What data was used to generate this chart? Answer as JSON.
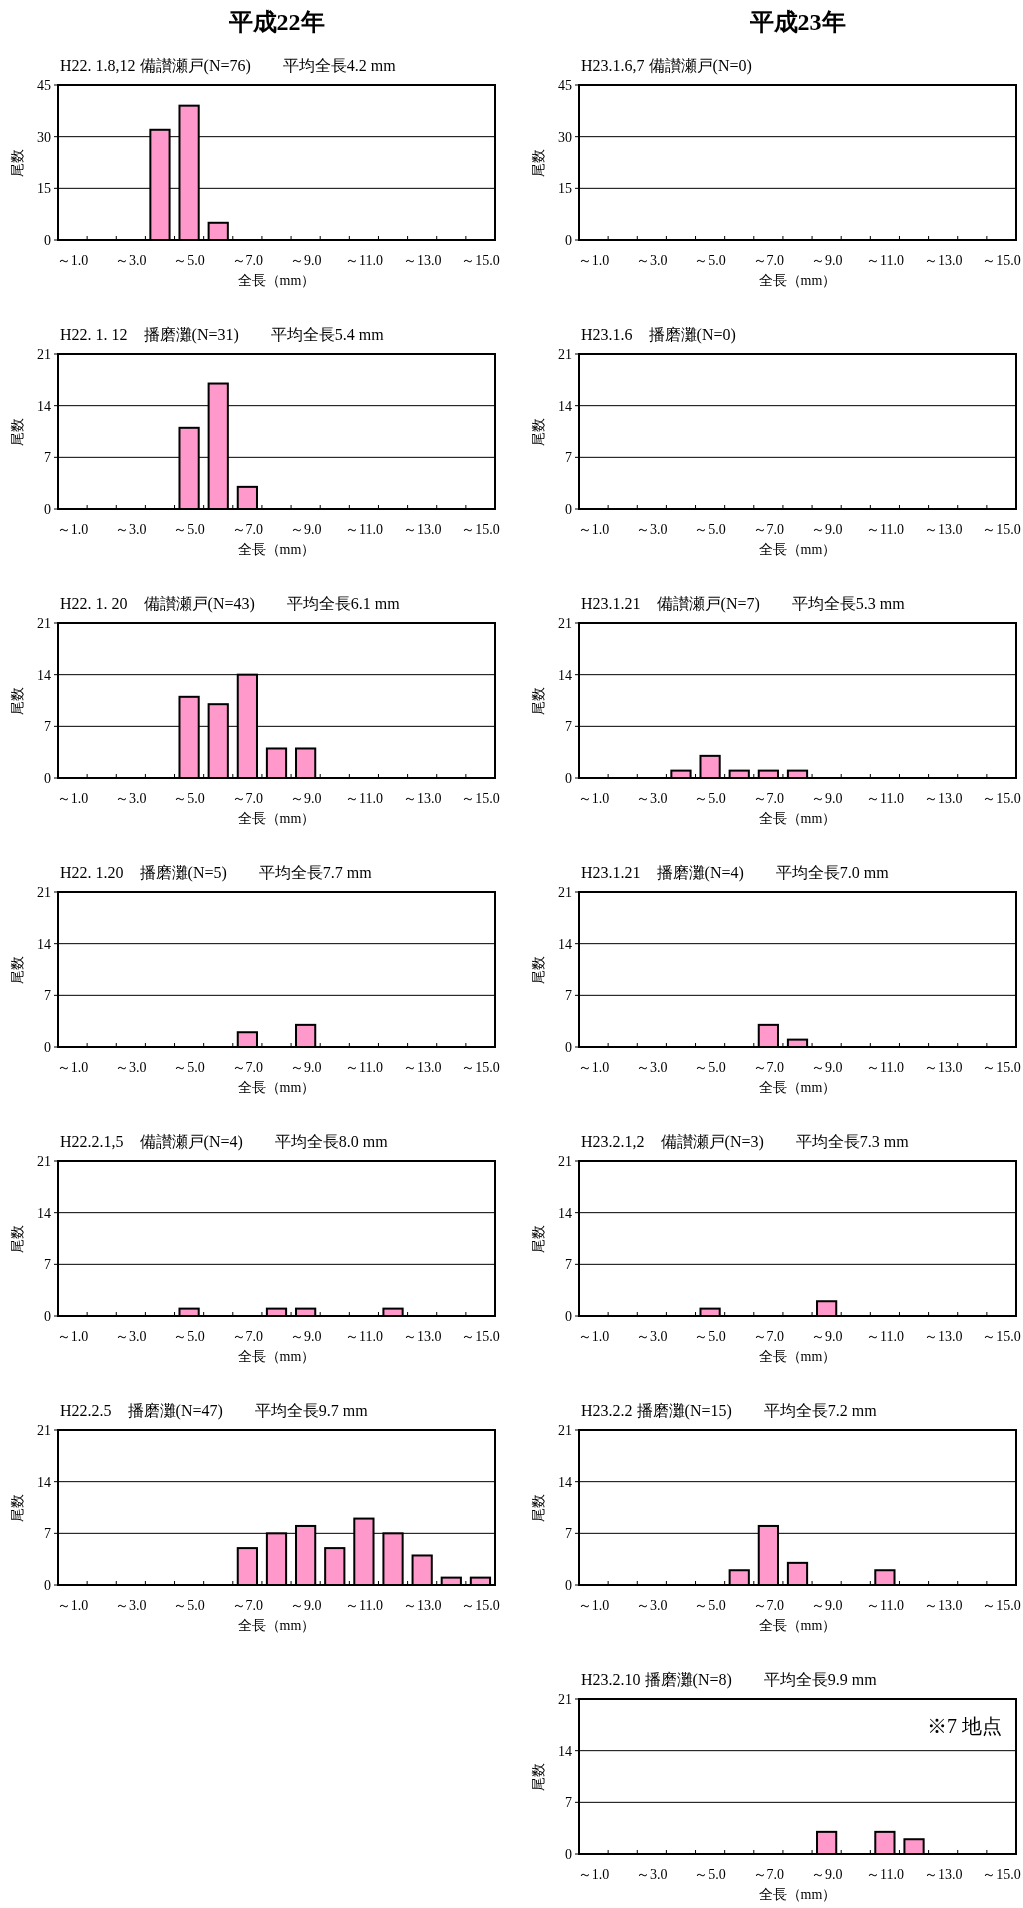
{
  "chart_data": [
    {
      "type": "bar",
      "title": "H22. 1.8,12 備讃瀬戸(N=76)　　平均全長4.2 mm",
      "xlabel": "全長（mm）",
      "ylabel": "尾数",
      "annotations": [
        "平成22年"
      ],
      "categories": [
        "～1.0",
        null,
        "～3.0",
        null,
        "～5.0",
        null,
        "～7.0",
        null,
        "～9.0",
        null,
        "～11.0",
        null,
        "～13.0",
        null,
        "～15.0"
      ],
      "values": [
        0,
        0,
        0,
        32,
        39,
        5,
        0,
        0,
        0,
        0,
        0,
        0,
        0,
        0,
        0
      ],
      "color": "#ff99cc",
      "ylim": [
        0,
        45
      ],
      "yticks": [
        0,
        15,
        30,
        45
      ],
      "grid": "y"
    },
    {
      "type": "bar",
      "title": "H23.1.6,7 備讃瀬戸(N=0)",
      "xlabel": "全長（mm）",
      "ylabel": "尾数",
      "annotations": [
        "平成23年"
      ],
      "categories": [
        "～1.0",
        null,
        "～3.0",
        null,
        "～5.0",
        null,
        "～7.0",
        null,
        "～9.0",
        null,
        "～11.0",
        null,
        "～13.0",
        null,
        "～15.0"
      ],
      "values": [
        0,
        0,
        0,
        0,
        0,
        0,
        0,
        0,
        0,
        0,
        0,
        0,
        0,
        0,
        0
      ],
      "color": "#ff99cc",
      "ylim": [
        0,
        45
      ],
      "yticks": [
        0,
        15,
        30,
        45
      ],
      "grid": "y"
    },
    {
      "type": "bar",
      "title": "H22. 1. 12　播磨灘(N=31)　　平均全長5.4 mm",
      "xlabel": "全長（mm）",
      "ylabel": "尾数",
      "categories": [
        "～1.0",
        null,
        "～3.0",
        null,
        "～5.0",
        null,
        "～7.0",
        null,
        "～9.0",
        null,
        "～11.0",
        null,
        "～13.0",
        null,
        "～15.0"
      ],
      "values": [
        0,
        0,
        0,
        0,
        11,
        17,
        3,
        0,
        0,
        0,
        0,
        0,
        0,
        0,
        0
      ],
      "color": "#ff99cc",
      "ylim": [
        0,
        21
      ],
      "yticks": [
        0,
        7,
        14,
        21
      ],
      "grid": "y"
    },
    {
      "type": "bar",
      "title": "H23.1.6　播磨灘(N=0)",
      "xlabel": "全長（mm）",
      "ylabel": "尾数",
      "categories": [
        "～1.0",
        null,
        "～3.0",
        null,
        "～5.0",
        null,
        "～7.0",
        null,
        "～9.0",
        null,
        "～11.0",
        null,
        "～13.0",
        null,
        "～15.0"
      ],
      "values": [
        0,
        0,
        0,
        0,
        0,
        0,
        0,
        0,
        0,
        0,
        0,
        0,
        0,
        0,
        0
      ],
      "color": "#ff99cc",
      "ylim": [
        0,
        21
      ],
      "yticks": [
        0,
        7,
        14,
        21
      ],
      "grid": "y"
    },
    {
      "type": "bar",
      "title": "H22. 1. 20　備讃瀬戸(N=43)　　平均全長6.1 mm",
      "xlabel": "全長（mm）",
      "ylabel": "尾数",
      "categories": [
        "～1.0",
        null,
        "～3.0",
        null,
        "～5.0",
        null,
        "～7.0",
        null,
        "～9.0",
        null,
        "～11.0",
        null,
        "～13.0",
        null,
        "～15.0"
      ],
      "values": [
        0,
        0,
        0,
        0,
        11,
        10,
        14,
        4,
        4,
        0,
        0,
        0,
        0,
        0,
        0
      ],
      "color": "#ff99cc",
      "ylim": [
        0,
        21
      ],
      "yticks": [
        0,
        7,
        14,
        21
      ],
      "grid": "y"
    },
    {
      "type": "bar",
      "title": "H23.1.21　備讃瀬戸(N=7)　　平均全長5.3 mm",
      "xlabel": "全長（mm）",
      "ylabel": "尾数",
      "categories": [
        "～1.0",
        null,
        "～3.0",
        null,
        "～5.0",
        null,
        "～7.0",
        null,
        "～9.0",
        null,
        "～11.0",
        null,
        "～13.0",
        null,
        "～15.0"
      ],
      "values": [
        0,
        0,
        0,
        1,
        3,
        1,
        1,
        1,
        0,
        0,
        0,
        0,
        0,
        0,
        0
      ],
      "color": "#ff99cc",
      "ylim": [
        0,
        21
      ],
      "yticks": [
        0,
        7,
        14,
        21
      ],
      "grid": "y"
    },
    {
      "type": "bar",
      "title": "H22. 1.20　播磨灘(N=5)　　平均全長7.7 mm",
      "xlabel": "全長（mm）",
      "ylabel": "尾数",
      "categories": [
        "～1.0",
        null,
        "～3.0",
        null,
        "～5.0",
        null,
        "～7.0",
        null,
        "～9.0",
        null,
        "～11.0",
        null,
        "～13.0",
        null,
        "～15.0"
      ],
      "values": [
        0,
        0,
        0,
        0,
        0,
        0,
        2,
        0,
        3,
        0,
        0,
        0,
        0,
        0,
        0
      ],
      "color": "#ff99cc",
      "ylim": [
        0,
        21
      ],
      "yticks": [
        0,
        7,
        14,
        21
      ],
      "grid": "y"
    },
    {
      "type": "bar",
      "title": "H23.1.21　播磨灘(N=4)　　平均全長7.0 mm",
      "xlabel": "全長（mm）",
      "ylabel": "尾数",
      "categories": [
        "～1.0",
        null,
        "～3.0",
        null,
        "～5.0",
        null,
        "～7.0",
        null,
        "～9.0",
        null,
        "～11.0",
        null,
        "～13.0",
        null,
        "～15.0"
      ],
      "values": [
        0,
        0,
        0,
        0,
        0,
        0,
        3,
        1,
        0,
        0,
        0,
        0,
        0,
        0,
        0
      ],
      "color": "#ff99cc",
      "ylim": [
        0,
        21
      ],
      "yticks": [
        0,
        7,
        14,
        21
      ],
      "grid": "y"
    },
    {
      "type": "bar",
      "title": "H22.2.1,5　備讃瀬戸(N=4)　　平均全長8.0 mm",
      "xlabel": "全長（mm）",
      "ylabel": "尾数",
      "categories": [
        "～1.0",
        null,
        "～3.0",
        null,
        "～5.0",
        null,
        "～7.0",
        null,
        "～9.0",
        null,
        "～11.0",
        null,
        "～13.0",
        null,
        "～15.0"
      ],
      "values": [
        0,
        0,
        0,
        0,
        1,
        0,
        0,
        1,
        1,
        0,
        0,
        1,
        0,
        0,
        0
      ],
      "color": "#ff99cc",
      "ylim": [
        0,
        21
      ],
      "yticks": [
        0,
        7,
        14,
        21
      ],
      "grid": "y"
    },
    {
      "type": "bar",
      "title": "H23.2.1,2　備讃瀬戸(N=3)　　平均全長7.3 mm",
      "xlabel": "全長（mm）",
      "ylabel": "尾数",
      "categories": [
        "～1.0",
        null,
        "～3.0",
        null,
        "～5.0",
        null,
        "～7.0",
        null,
        "～9.0",
        null,
        "～11.0",
        null,
        "～13.0",
        null,
        "～15.0"
      ],
      "values": [
        0,
        0,
        0,
        0,
        1,
        0,
        0,
        0,
        2,
        0,
        0,
        0,
        0,
        0,
        0
      ],
      "color": "#ff99cc",
      "ylim": [
        0,
        21
      ],
      "yticks": [
        0,
        7,
        14,
        21
      ],
      "grid": "y"
    },
    {
      "type": "bar",
      "title": "H22.2.5　播磨灘(N=47)　　平均全長9.7 mm",
      "xlabel": "全長（mm）",
      "ylabel": "尾数",
      "categories": [
        "～1.0",
        null,
        "～3.0",
        null,
        "～5.0",
        null,
        "～7.0",
        null,
        "～9.0",
        null,
        "～11.0",
        null,
        "～13.0",
        null,
        "～15.0"
      ],
      "values": [
        0,
        0,
        0,
        0,
        0,
        0,
        5,
        7,
        8,
        5,
        9,
        7,
        4,
        1,
        1
      ],
      "color": "#ff99cc",
      "ylim": [
        0,
        21
      ],
      "yticks": [
        0,
        7,
        14,
        21
      ],
      "grid": "y"
    },
    {
      "type": "bar",
      "title": "H23.2.2 播磨灘(N=15)　　平均全長7.2 mm",
      "xlabel": "全長（mm）",
      "ylabel": "尾数",
      "categories": [
        "～1.0",
        null,
        "～3.0",
        null,
        "～5.0",
        null,
        "～7.0",
        null,
        "～9.0",
        null,
        "～11.0",
        null,
        "～13.0",
        null,
        "～15.0"
      ],
      "values": [
        0,
        0,
        0,
        0,
        0,
        2,
        8,
        3,
        0,
        0,
        2,
        0,
        0,
        0,
        0
      ],
      "color": "#ff99cc",
      "ylim": [
        0,
        21
      ],
      "yticks": [
        0,
        7,
        14,
        21
      ],
      "grid": "y"
    },
    {
      "type": "bar",
      "title": "H23.2.10 播磨灘(N=8)　　平均全長9.9 mm",
      "xlabel": "全長（mm）",
      "ylabel": "尾数",
      "annotations": [
        "※7 地点"
      ],
      "categories": [
        "～1.0",
        null,
        "～3.0",
        null,
        "～5.0",
        null,
        "～7.0",
        null,
        "～9.0",
        null,
        "～11.0",
        null,
        "～13.0",
        null,
        "～15.0"
      ],
      "values": [
        0,
        0,
        0,
        0,
        0,
        0,
        0,
        0,
        3,
        0,
        3,
        2,
        0,
        0,
        0
      ],
      "color": "#ff99cc",
      "ylim": [
        0,
        21
      ],
      "yticks": [
        0,
        7,
        14,
        21
      ],
      "grid": "y"
    }
  ]
}
